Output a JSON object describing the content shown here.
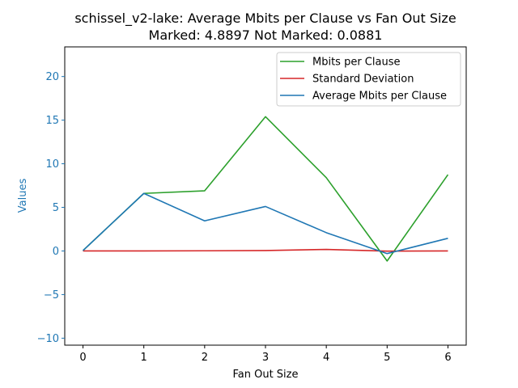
{
  "chart_data": {
    "type": "line",
    "title": "schissel_v2-lake: Average Mbits per Clause vs Fan Out Size",
    "subtitle": "Marked: 4.8897 Not Marked: 0.0881",
    "xlabel": "Fan Out Size",
    "ylabel": "Values",
    "x": [
      0,
      1,
      2,
      3,
      4,
      5,
      6
    ],
    "xlim": [
      -0.3,
      6.3
    ],
    "ylim": [
      -10.8,
      23.4
    ],
    "xticks": [
      "0",
      "1",
      "2",
      "3",
      "4",
      "5",
      "6"
    ],
    "yticks": [
      -10,
      -5,
      0,
      5,
      10,
      15,
      20
    ],
    "ytick_labels": [
      "−10",
      "−5",
      "0",
      "5",
      "10",
      "15",
      "20"
    ],
    "grid": false,
    "legend_position": "top-right",
    "ytick_color": "#1f77b4",
    "series": [
      {
        "name": "Mbits per Clause",
        "color": "#2ca02c",
        "values": [
          0.05,
          6.6,
          6.9,
          15.4,
          8.4,
          -1.15,
          8.75
        ]
      },
      {
        "name": "Standard Deviation",
        "color": "#d62728",
        "values": [
          0.0,
          0.0,
          0.02,
          0.05,
          0.18,
          -0.02,
          0.0
        ]
      },
      {
        "name": "Average Mbits per Clause",
        "color": "#1f77b4",
        "values": [
          0.05,
          6.6,
          3.45,
          5.1,
          2.1,
          -0.3,
          1.45
        ]
      }
    ]
  }
}
